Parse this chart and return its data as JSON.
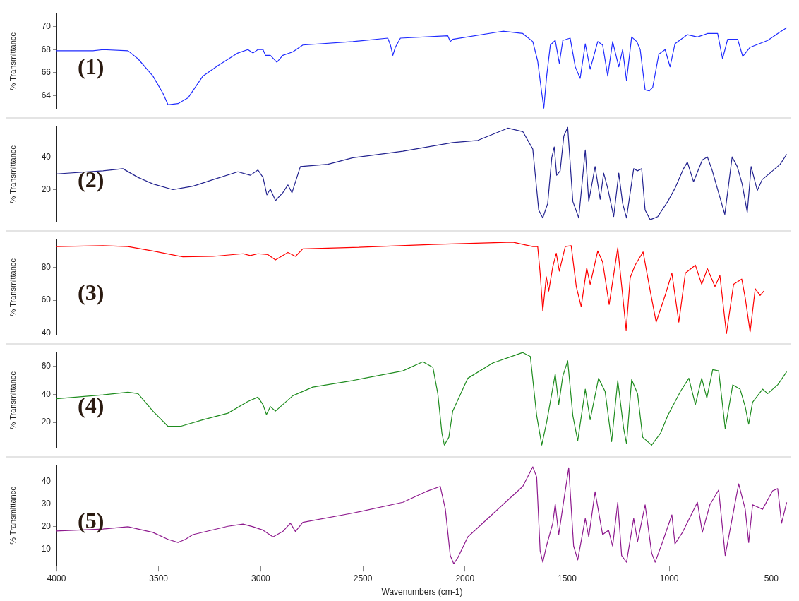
{
  "chart_data": [
    {
      "type": "line",
      "ylabel": "% Transmittance",
      "annotations": [
        "(1)"
      ],
      "color": "#1f2bff",
      "xlim": [
        4000,
        420
      ],
      "ylim": [
        62.8,
        71.2
      ],
      "yticks": [
        64,
        66,
        68,
        70
      ],
      "tick_labels": "y",
      "grid": false,
      "legend": false,
      "x": [
        4000,
        3821,
        3772,
        3650,
        3601,
        3528,
        3479,
        3454,
        3405,
        3356,
        3283,
        3210,
        3112,
        3063,
        3038,
        3014,
        2989,
        2977,
        2953,
        2921,
        2892,
        2843,
        2794,
        2549,
        2378,
        2365,
        2353,
        2341,
        2316,
        2084,
        2072,
        2060,
        1815,
        1717,
        1668,
        1644,
        1624,
        1614,
        1600,
        1582,
        1558,
        1538,
        1521,
        1485,
        1460,
        1436,
        1411,
        1387,
        1350,
        1326,
        1301,
        1277,
        1247,
        1228,
        1209,
        1184,
        1159,
        1142,
        1118,
        1098,
        1081,
        1051,
        1020,
        996,
        972,
        911,
        862,
        813,
        763,
        739,
        714,
        665,
        640,
        604,
        518,
        469,
        425
      ],
      "values": [
        67.9,
        67.9,
        68.0,
        67.9,
        67.2,
        65.7,
        64.2,
        63.2,
        63.3,
        63.8,
        65.7,
        66.6,
        67.7,
        68.0,
        67.7,
        68.0,
        68.0,
        67.5,
        67.5,
        66.9,
        67.5,
        67.8,
        68.4,
        68.7,
        69.0,
        68.4,
        67.5,
        68.2,
        69.0,
        69.2,
        68.7,
        68.9,
        69.6,
        69.4,
        68.7,
        67.0,
        64.2,
        62.9,
        65.7,
        68.4,
        68.8,
        66.8,
        68.8,
        69.0,
        66.5,
        65.5,
        68.5,
        66.3,
        68.7,
        68.4,
        65.7,
        68.7,
        66.5,
        68.0,
        65.3,
        69.1,
        68.7,
        68.0,
        64.5,
        64.4,
        64.7,
        67.6,
        68.0,
        66.5,
        68.5,
        69.3,
        69.1,
        69.4,
        69.4,
        67.2,
        68.9,
        68.9,
        67.4,
        68.2,
        68.8,
        69.4,
        69.9
      ]
    },
    {
      "type": "line",
      "ylabel": "% Transmittance",
      "annotations": [
        "(2)"
      ],
      "color": "#23238f",
      "xlim": [
        4000,
        420
      ],
      "ylim": [
        0,
        59
      ],
      "yticks": [
        20,
        40
      ],
      "tick_labels": "y",
      "grid": false,
      "legend": false,
      "x": [
        4000,
        3772,
        3675,
        3601,
        3528,
        3430,
        3332,
        3234,
        3112,
        3051,
        3014,
        2989,
        2970,
        2953,
        2928,
        2892,
        2867,
        2847,
        2806,
        2671,
        2549,
        2304,
        2060,
        1937,
        1790,
        1717,
        1668,
        1639,
        1619,
        1595,
        1575,
        1563,
        1551,
        1534,
        1516,
        1497,
        1472,
        1443,
        1411,
        1394,
        1363,
        1338,
        1321,
        1301,
        1272,
        1247,
        1228,
        1209,
        1174,
        1155,
        1135,
        1118,
        1093,
        1056,
        1007,
        972,
        930,
        911,
        881,
        838,
        813,
        789,
        728,
        692,
        667,
        643,
        618,
        599,
        569,
        545,
        494,
        457,
        425
      ],
      "values": [
        29.6,
        31.5,
        32.8,
        27.5,
        23.5,
        20.0,
        22.1,
        26.1,
        30.9,
        28.8,
        32.0,
        27.5,
        16.8,
        20.3,
        13.3,
        18.1,
        22.9,
        18.1,
        34.1,
        35.5,
        39.5,
        43.5,
        48.8,
        50.1,
        57.6,
        55.5,
        44.8,
        7.5,
        2.7,
        11.5,
        39.5,
        46.1,
        28.8,
        31.5,
        52.8,
        58.1,
        12.8,
        2.7,
        44.3,
        12.8,
        34.1,
        14.1,
        30.1,
        20.8,
        3.5,
        30.1,
        11.5,
        2.7,
        32.8,
        31.5,
        32.8,
        7.5,
        1.6,
        3.5,
        12.8,
        20.8,
        32.8,
        36.8,
        24.8,
        38.1,
        40.0,
        31.5,
        4.8,
        40.0,
        34.1,
        23.5,
        6.1,
        34.1,
        19.5,
        26.1,
        31.5,
        35.5,
        41.6
      ]
    },
    {
      "type": "line",
      "ylabel": "% Transmittance",
      "annotations": [
        "(3)"
      ],
      "color": "#ff0000",
      "xlim": [
        4000,
        420
      ],
      "ylim": [
        38.5,
        97.5
      ],
      "yticks": [
        40,
        60,
        80
      ],
      "tick_labels": "y",
      "grid": false,
      "legend": false,
      "x": [
        4000,
        3772,
        3650,
        3528,
        3381,
        3234,
        3087,
        3051,
        3014,
        2965,
        2928,
        2867,
        2830,
        2794,
        2549,
        2157,
        1766,
        1668,
        1644,
        1632,
        1619,
        1602,
        1590,
        1570,
        1553,
        1538,
        1509,
        1480,
        1455,
        1431,
        1404,
        1387,
        1350,
        1326,
        1294,
        1252,
        1228,
        1211,
        1191,
        1167,
        1128,
        1093,
        1064,
        1020,
        987,
        953,
        921,
        872,
        841,
        813,
        776,
        752,
        720,
        685,
        645,
        628,
        604,
        579,
        555,
        537
      ],
      "values": [
        92.8,
        93.3,
        92.8,
        90.1,
        86.5,
        86.8,
        88.4,
        87.3,
        88.4,
        87.9,
        84.6,
        89.2,
        86.8,
        91.4,
        92.2,
        94.1,
        95.5,
        92.8,
        92.8,
        76.5,
        53.4,
        74.3,
        65.6,
        80.5,
        88.7,
        77.8,
        92.8,
        93.3,
        68.3,
        56.1,
        79.7,
        69.7,
        90.1,
        83.3,
        57.4,
        92.0,
        62.9,
        41.7,
        73.8,
        81.4,
        89.5,
        65.6,
        46.6,
        62.9,
        76.5,
        46.6,
        76.5,
        81.4,
        69.7,
        79.2,
        68.3,
        75.1,
        39.5,
        69.7,
        72.9,
        61.5,
        40.6,
        67.0,
        62.9,
        65.6
      ]
    },
    {
      "type": "line",
      "ylabel": "% Transmittance",
      "annotations": [
        "(4)"
      ],
      "color": "#1f8c1f",
      "xlim": [
        4000,
        420
      ],
      "ylim": [
        1.5,
        70.5
      ],
      "yticks": [
        20,
        40,
        60
      ],
      "tick_labels": "y",
      "grid": false,
      "legend": false,
      "x": [
        4000,
        3772,
        3650,
        3601,
        3528,
        3454,
        3393,
        3283,
        3161,
        3063,
        3014,
        2989,
        2972,
        2953,
        2928,
        2843,
        2745,
        2549,
        2304,
        2206,
        2157,
        2133,
        2113,
        2101,
        2079,
        2060,
        1986,
        1864,
        1717,
        1680,
        1649,
        1624,
        1600,
        1575,
        1558,
        1541,
        1521,
        1497,
        1472,
        1448,
        1411,
        1387,
        1346,
        1314,
        1282,
        1252,
        1223,
        1209,
        1184,
        1155,
        1130,
        1086,
        1042,
        1007,
        945,
        904,
        872,
        841,
        816,
        787,
        758,
        726,
        689,
        653,
        628,
        611,
        592,
        543,
        518,
        469,
        425
      ],
      "values": [
        36.9,
        39.7,
        41.6,
        40.6,
        28.1,
        17.2,
        17.2,
        21.9,
        26.6,
        35.0,
        38.1,
        32.8,
        25.6,
        31.3,
        28.1,
        39.1,
        45.3,
        50.0,
        56.9,
        63.4,
        59.4,
        40.6,
        12.5,
        3.8,
        9.4,
        28.1,
        51.6,
        62.5,
        70.0,
        67.2,
        25.0,
        3.8,
        20.3,
        40.6,
        54.7,
        32.8,
        53.1,
        64.1,
        25.0,
        6.9,
        43.8,
        21.9,
        51.6,
        42.2,
        6.3,
        50.0,
        15.6,
        4.7,
        50.6,
        40.6,
        9.4,
        3.8,
        12.5,
        25.0,
        42.2,
        51.6,
        32.8,
        51.6,
        37.5,
        57.8,
        56.9,
        15.6,
        46.9,
        43.8,
        31.3,
        18.8,
        34.4,
        43.8,
        40.6,
        46.9,
        56.3
      ]
    },
    {
      "type": "line",
      "ylabel": "% Transmittance",
      "xlabel": "Wavenumbers (cm-1)",
      "annotations": [
        "(5)"
      ],
      "color": "#8e1a8e",
      "xlim": [
        4000,
        420
      ],
      "xticks": [
        4000,
        3500,
        3000,
        2500,
        2000,
        1500,
        1000,
        500
      ],
      "ylim": [
        2.5,
        47.5
      ],
      "yticks": [
        10,
        20,
        30,
        40
      ],
      "grid": false,
      "legend": false,
      "x": [
        4000,
        3772,
        3650,
        3528,
        3454,
        3405,
        3369,
        3332,
        3161,
        3087,
        3038,
        2989,
        2940,
        2892,
        2855,
        2830,
        2794,
        2549,
        2304,
        2182,
        2121,
        2096,
        2072,
        2055,
        2035,
        1986,
        1864,
        1717,
        1668,
        1649,
        1632,
        1619,
        1600,
        1570,
        1558,
        1541,
        1516,
        1492,
        1468,
        1448,
        1411,
        1394,
        1363,
        1326,
        1297,
        1277,
        1252,
        1233,
        1209,
        1174,
        1155,
        1118,
        1086,
        1069,
        1032,
        987,
        972,
        935,
        862,
        838,
        801,
        758,
        726,
        660,
        628,
        611,
        592,
        543,
        494,
        469,
        450,
        425
      ],
      "values": [
        18.0,
        18.9,
        19.9,
        17.4,
        14.3,
        12.9,
        14.3,
        16.4,
        20.1,
        21.1,
        19.9,
        18.4,
        15.4,
        17.8,
        21.5,
        17.8,
        21.9,
        26.0,
        30.8,
        35.9,
        37.9,
        27.7,
        7.1,
        3.4,
        6.1,
        15.4,
        25.6,
        37.9,
        46.6,
        42.1,
        9.2,
        4.1,
        11.7,
        21.5,
        30.1,
        16.4,
        31.8,
        46.2,
        11.3,
        5.1,
        23.6,
        15.4,
        35.5,
        16.4,
        18.4,
        11.3,
        30.8,
        7.1,
        4.1,
        23.6,
        13.3,
        29.7,
        8.2,
        4.1,
        13.3,
        25.2,
        12.3,
        17.4,
        30.8,
        17.4,
        29.7,
        36.3,
        7.1,
        39.0,
        27.7,
        12.9,
        29.7,
        27.7,
        35.9,
        36.9,
        21.5,
        30.8
      ]
    }
  ]
}
